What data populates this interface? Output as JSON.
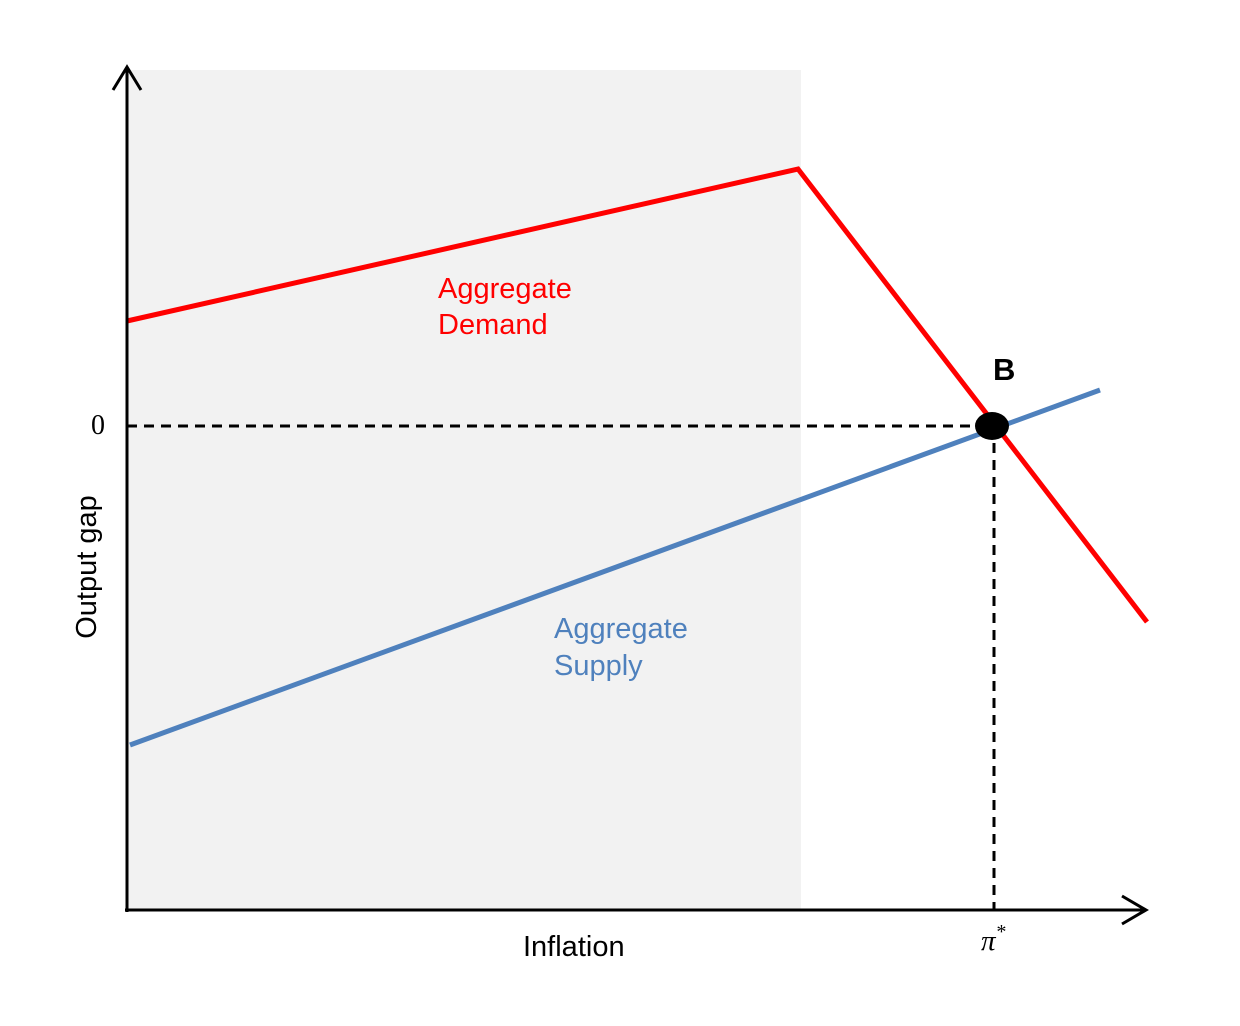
{
  "diagram": {
    "x_axis_label": "Inflation",
    "y_axis_label": "Output gap",
    "y_tick_zero": "0",
    "x_tick_symbol": "π",
    "x_tick_superscript": "*",
    "point_label": "B",
    "demand": {
      "line1": "Aggregate",
      "line2": "Demand",
      "color": "#ff0000"
    },
    "supply": {
      "line1": "Aggregate",
      "line2": "Supply",
      "color": "#4f81bd"
    },
    "shade_color": "#f2f2f2"
  }
}
